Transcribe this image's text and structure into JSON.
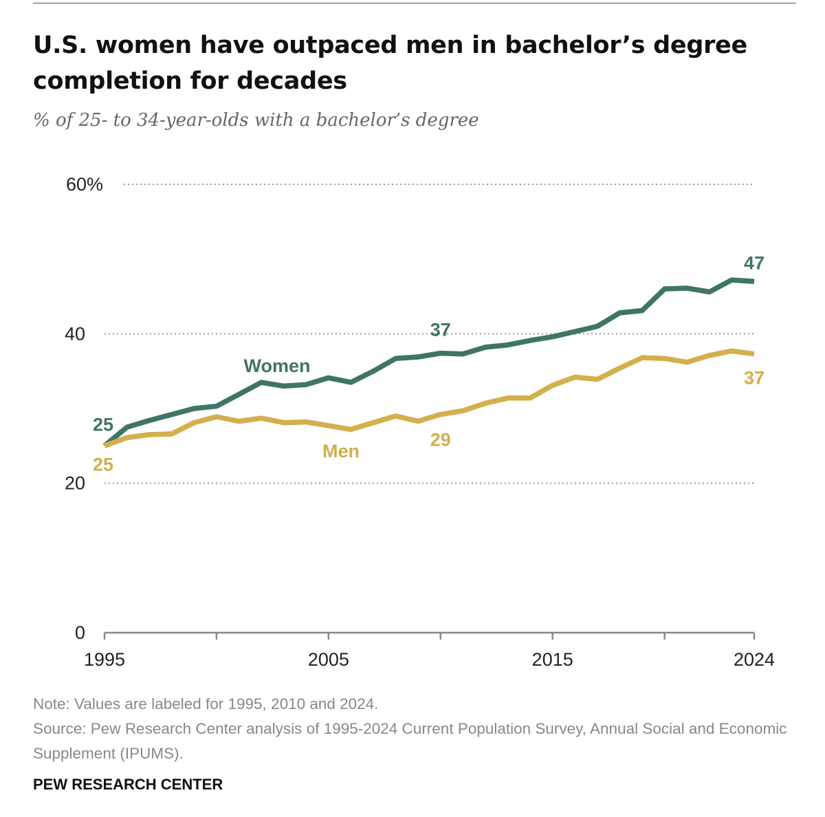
{
  "header": {
    "title": "U.S. women have outpaced men in bachelor’s degree completion for decades",
    "subtitle": "% of 25- to 34-year-olds with a bachelor’s degree"
  },
  "footer": {
    "note": "Note: Values are labeled for 1995, 2010 and 2024.",
    "source": "Source: Pew Research Center analysis of 1995-2024 Current Population Survey, Annual Social and Economic Supplement (IPUMS).",
    "brand": "PEW RESEARCH CENTER"
  },
  "colors": {
    "women": "#3f7566",
    "men": "#d2b04c",
    "grid": "#999999",
    "axis": "#888888"
  },
  "chart_data": {
    "type": "line",
    "title": "U.S. women have outpaced men in bachelor’s degree completion for decades",
    "subtitle": "% of 25- to 34-year-olds with a bachelor’s degree",
    "xlabel": "",
    "ylabel": "",
    "ylim": [
      0,
      60
    ],
    "xlim": [
      1995,
      2024
    ],
    "y_ticks": [
      0,
      20,
      40,
      60
    ],
    "y_tick_labels": [
      "0",
      "20",
      "40",
      "60%"
    ],
    "x_ticks": [
      1995,
      2005,
      2015,
      2024
    ],
    "x_tick_labels": [
      "1995",
      "2005",
      "2015",
      "2024"
    ],
    "grid": "horizontal dotted",
    "x": [
      1995,
      1996,
      1997,
      1998,
      1999,
      2000,
      2001,
      2002,
      2003,
      2004,
      2005,
      2006,
      2007,
      2008,
      2009,
      2010,
      2011,
      2012,
      2013,
      2014,
      2015,
      2016,
      2017,
      2018,
      2019,
      2020,
      2021,
      2022,
      2023,
      2024
    ],
    "series": [
      {
        "name": "Women",
        "color_key": "women",
        "values": [
          25,
          27.5,
          28.4,
          29.2,
          30,
          30.3,
          31.9,
          33.5,
          33.0,
          33.2,
          34.1,
          33.5,
          35,
          36.7,
          36.9,
          37.4,
          37.3,
          38.2,
          38.5,
          39.1,
          39.6,
          40.3,
          41,
          42.8,
          43.1,
          46.0,
          46.1,
          45.6,
          47.2,
          47
        ],
        "label": "Women",
        "value_labels": [
          {
            "year": 1995,
            "text": "25"
          },
          {
            "year": 2010,
            "text": "37"
          },
          {
            "year": 2024,
            "text": "47"
          }
        ]
      },
      {
        "name": "Men",
        "color_key": "men",
        "values": [
          25,
          26.1,
          26.5,
          26.6,
          28.1,
          28.9,
          28.3,
          28.7,
          28.1,
          28.2,
          27.7,
          27.2,
          28.1,
          29.0,
          28.3,
          29.2,
          29.7,
          30.7,
          31.4,
          31.4,
          33.1,
          34.2,
          33.9,
          35.4,
          36.8,
          36.7,
          36.2,
          37.1,
          37.7,
          37.3
        ],
        "label": "Men",
        "value_labels": [
          {
            "year": 1995,
            "text": "25"
          },
          {
            "year": 2010,
            "text": "29"
          },
          {
            "year": 2024,
            "text": "37"
          }
        ]
      }
    ]
  }
}
